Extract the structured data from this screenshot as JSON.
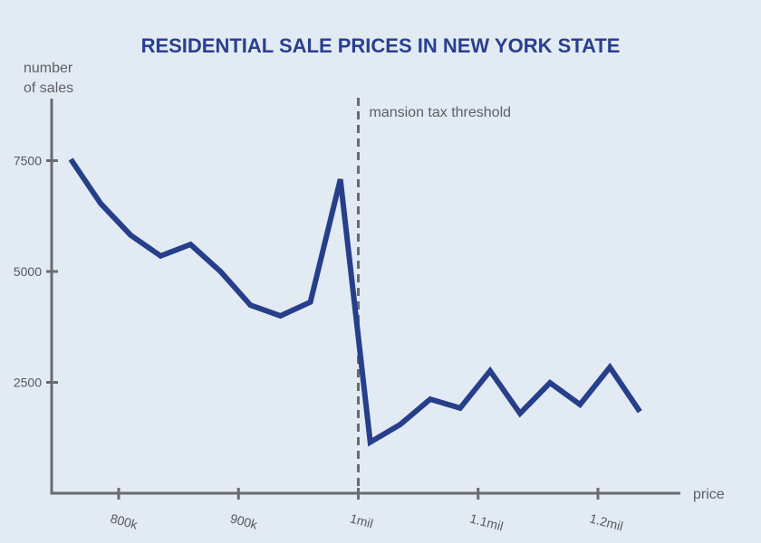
{
  "chart_data": {
    "type": "line",
    "title": "RESIDENTIAL SALE PRICES IN NEW YORK STATE",
    "xlabel": "price",
    "ylabel": [
      "number",
      "of sales"
    ],
    "x_unit": "USD (thousands)",
    "xlim": [
      740,
      1270
    ],
    "ylim": [
      0,
      9000
    ],
    "x_ticks": [
      {
        "value": 800,
        "label": "800k"
      },
      {
        "value": 900,
        "label": "900k"
      },
      {
        "value": 1000,
        "label": "1mil"
      },
      {
        "value": 1100,
        "label": "1.1mil"
      },
      {
        "value": 1200,
        "label": "1.2mil"
      }
    ],
    "y_ticks": [
      {
        "value": 2500,
        "label": "2500"
      },
      {
        "value": 5000,
        "label": "5000"
      },
      {
        "value": 7500,
        "label": "7500"
      }
    ],
    "grid": false,
    "annotations": [
      {
        "type": "vertical-dashed-line",
        "x": 1000,
        "label": "mansion tax threshold"
      }
    ],
    "series": [
      {
        "name": "number of sales",
        "color": "#273f8a",
        "x": [
          760,
          785,
          810,
          835,
          860,
          885,
          910,
          935,
          960,
          985,
          1010,
          1035,
          1060,
          1085,
          1110,
          1135,
          1160,
          1185,
          1210,
          1235
        ],
        "values": [
          7530,
          6530,
          5820,
          5350,
          5610,
          5000,
          4240,
          4000,
          4310,
          7080,
          1150,
          1550,
          2120,
          1920,
          2760,
          1800,
          2490,
          2000,
          2840,
          1840
        ]
      }
    ]
  },
  "colors": {
    "background": "#e2eaf3",
    "title": "#2a3f8f",
    "series": "#273f8a",
    "axis": "#6b6b6f"
  }
}
